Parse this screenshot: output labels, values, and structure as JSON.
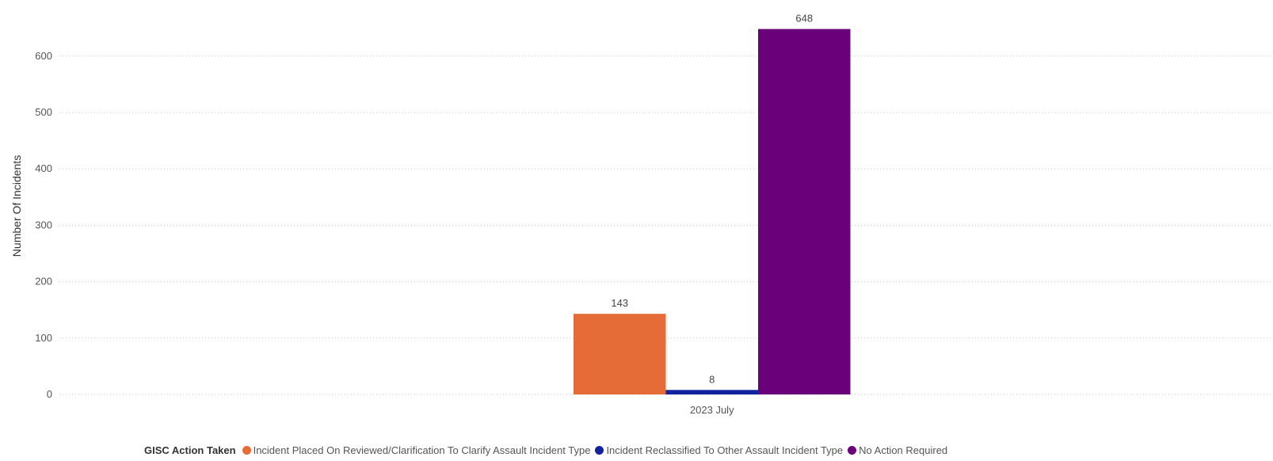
{
  "chart_data": {
    "type": "bar",
    "categories": [
      "2023 July"
    ],
    "series": [
      {
        "name": "Incident Placed On Reviewed/Clarification To Clarify Assault Incident Type",
        "values": [
          143
        ],
        "color": "#E66C37"
      },
      {
        "name": "Incident Reclassified To Other Assault Incident Type",
        "values": [
          8
        ],
        "color": "#12239E"
      },
      {
        "name": "No Action Required",
        "values": [
          648
        ],
        "color": "#6B007B"
      }
    ],
    "title": "",
    "xlabel": "",
    "ylabel": "Number Of Incidents",
    "ylim": [
      0,
      650
    ],
    "yticks": [
      0,
      100,
      200,
      300,
      400,
      500,
      600
    ],
    "grid": true,
    "legend_title": "GISC Action Taken",
    "legend_position": "bottom"
  }
}
